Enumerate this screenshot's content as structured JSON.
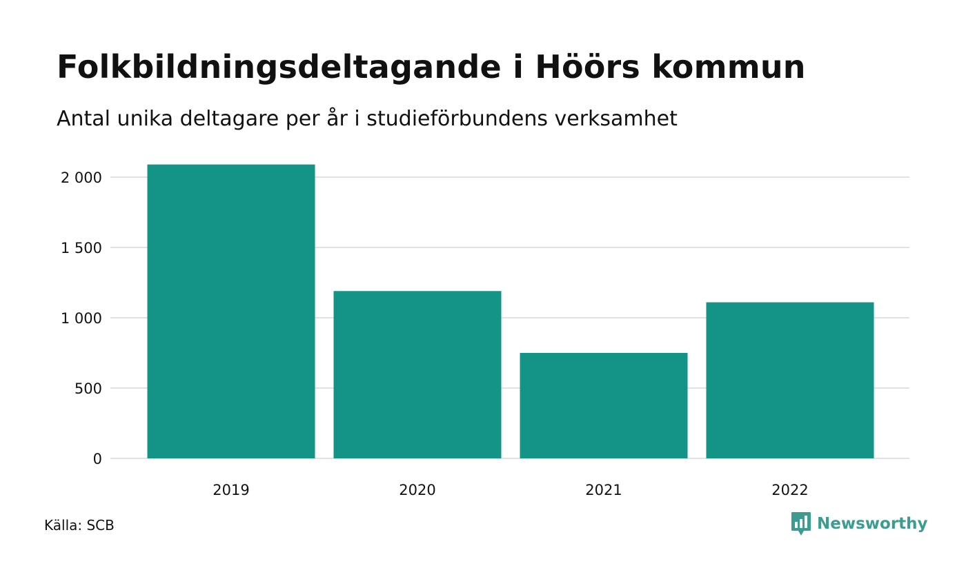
{
  "colors": {
    "bar": "#149487",
    "grid": "#e1e1e1",
    "text": "#111111",
    "brand": "#3b9c8f"
  },
  "chart_data": {
    "type": "bar",
    "title": "Folkbildningsdeltagande i Höörs kommun",
    "subtitle": "Antal unika deltagare per år i studieförbundens verksamhet",
    "xlabel": "",
    "ylabel": "",
    "categories": [
      "2019",
      "2020",
      "2021",
      "2022"
    ],
    "values": [
      2090,
      1190,
      750,
      1110
    ],
    "ylim": [
      0,
      2000
    ],
    "yticks": [
      0,
      500,
      1000,
      1500,
      2000
    ],
    "ytick_labels": [
      "0",
      "500",
      "1 000",
      "1 500",
      "2 000"
    ],
    "grid": true,
    "legend": "none"
  },
  "footer": {
    "source": "Källa: SCB",
    "brand": "Newsworthy",
    "brand_icon": "bar-chart-speech-bubble-icon"
  }
}
